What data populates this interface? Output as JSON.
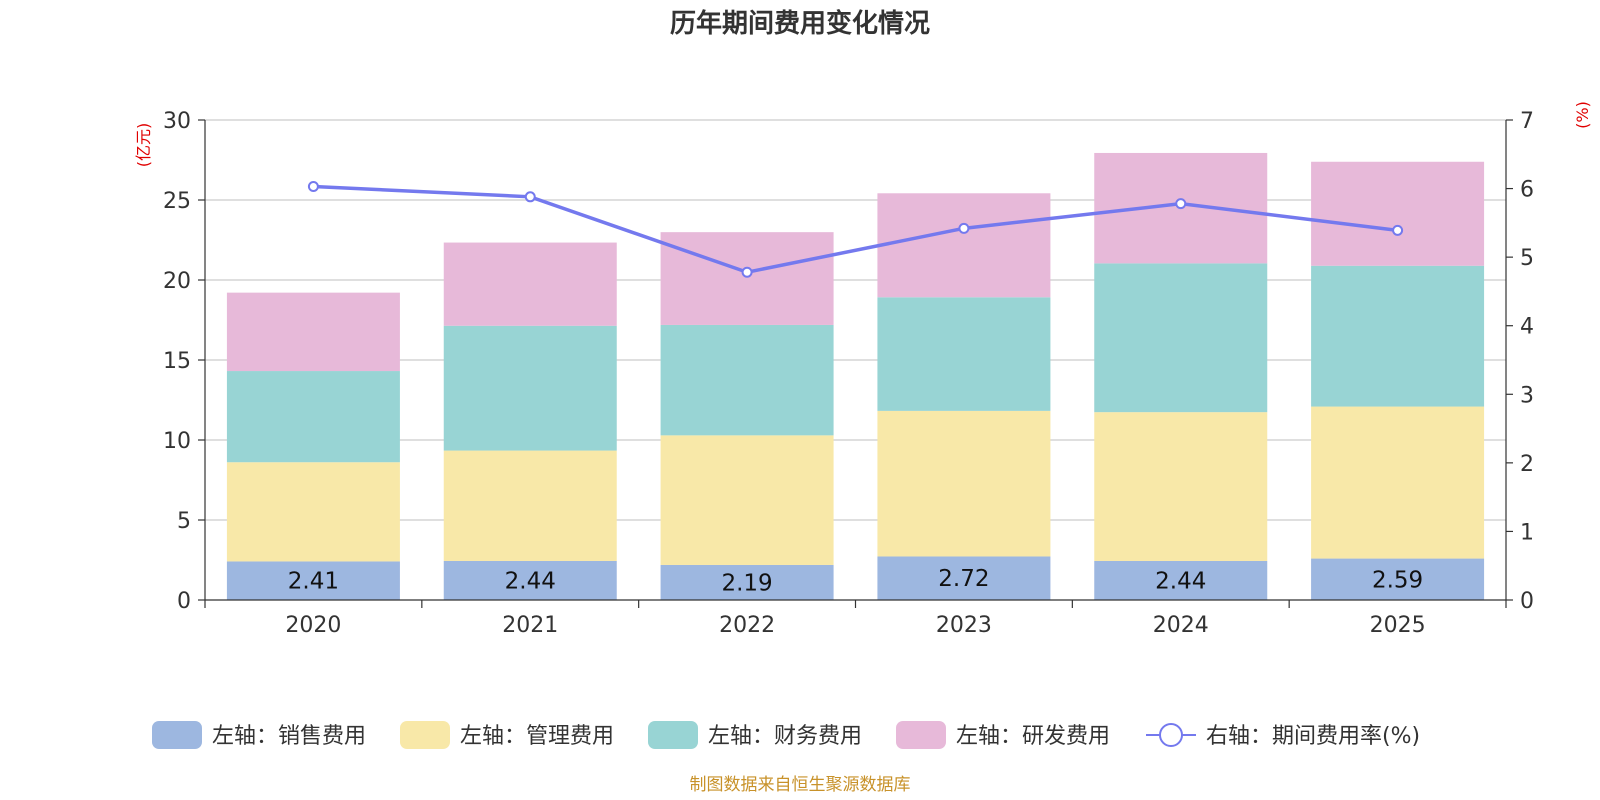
{
  "chart_data": {
    "type": "bar",
    "stacked": true,
    "title": "历年期间费用变化情况",
    "categories": [
      "2020",
      "2021",
      "2022",
      "2023",
      "2024",
      "2025"
    ],
    "left_axis": {
      "unit": "(亿元)",
      "ylim": [
        0,
        30
      ],
      "ticks": [
        0,
        5,
        10,
        15,
        20,
        25,
        30
      ]
    },
    "right_axis": {
      "unit": "(%)",
      "ylim": [
        0,
        7
      ],
      "ticks": [
        0,
        1,
        2,
        3,
        4,
        5,
        6,
        7
      ]
    },
    "series": [
      {
        "name": "左轴：销售费用",
        "axis": "left",
        "color": "#9db7e0",
        "values": [
          2.41,
          2.44,
          2.19,
          2.72,
          2.44,
          2.59
        ],
        "labels": [
          "2.41",
          "2.44",
          "2.19",
          "2.72",
          "2.44",
          "2.59"
        ]
      },
      {
        "name": "左轴：管理费用",
        "axis": "left",
        "color": "#f8e8a8",
        "values": [
          6.2,
          6.9,
          8.1,
          9.1,
          9.3,
          9.5
        ]
      },
      {
        "name": "左轴：财务费用",
        "axis": "left",
        "color": "#98d4d4",
        "values": [
          5.7,
          7.8,
          6.9,
          7.1,
          9.3,
          8.8
        ]
      },
      {
        "name": "左轴：研发费用",
        "axis": "left",
        "color": "#e7b9d9",
        "values": [
          4.9,
          5.2,
          5.8,
          6.5,
          6.9,
          6.5
        ]
      },
      {
        "name": "右轴：期间费用率(%)",
        "axis": "right",
        "type": "line",
        "color": "#7479ee",
        "values": [
          6.03,
          5.88,
          4.78,
          5.42,
          5.78,
          5.39
        ]
      }
    ],
    "legend_position": "bottom",
    "source": "制图数据来自恒生聚源数据库"
  }
}
